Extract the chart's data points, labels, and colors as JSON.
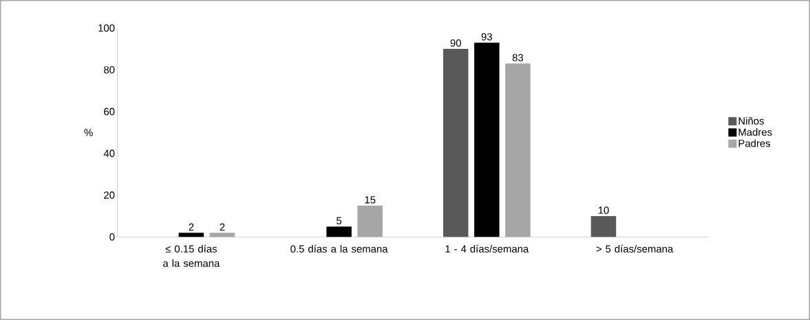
{
  "chart_data": {
    "type": "bar",
    "ylabel": "%",
    "categories": [
      "≤ 0.15 días a la semana",
      "0.5 días a la semana",
      "1 - 4 días/semana",
      "> 5 días/semana"
    ],
    "series": [
      {
        "name": "Niños",
        "color": "#595959",
        "values": [
          0,
          0,
          90,
          10
        ],
        "value_labels": [
          null,
          null,
          "90",
          "10"
        ]
      },
      {
        "name": "Madres",
        "color": "#000000",
        "values": [
          2,
          5,
          93,
          0
        ],
        "value_labels": [
          "2",
          "5",
          "93",
          null
        ]
      },
      {
        "name": "Padres",
        "color": "#a6a6a6",
        "values": [
          2,
          15,
          83,
          0
        ],
        "value_labels": [
          "2",
          "15",
          "83",
          null
        ]
      }
    ],
    "ylim": [
      0,
      100
    ],
    "yticks": [
      0,
      20,
      40,
      60,
      80,
      100
    ],
    "grid": false,
    "legend": "right"
  }
}
